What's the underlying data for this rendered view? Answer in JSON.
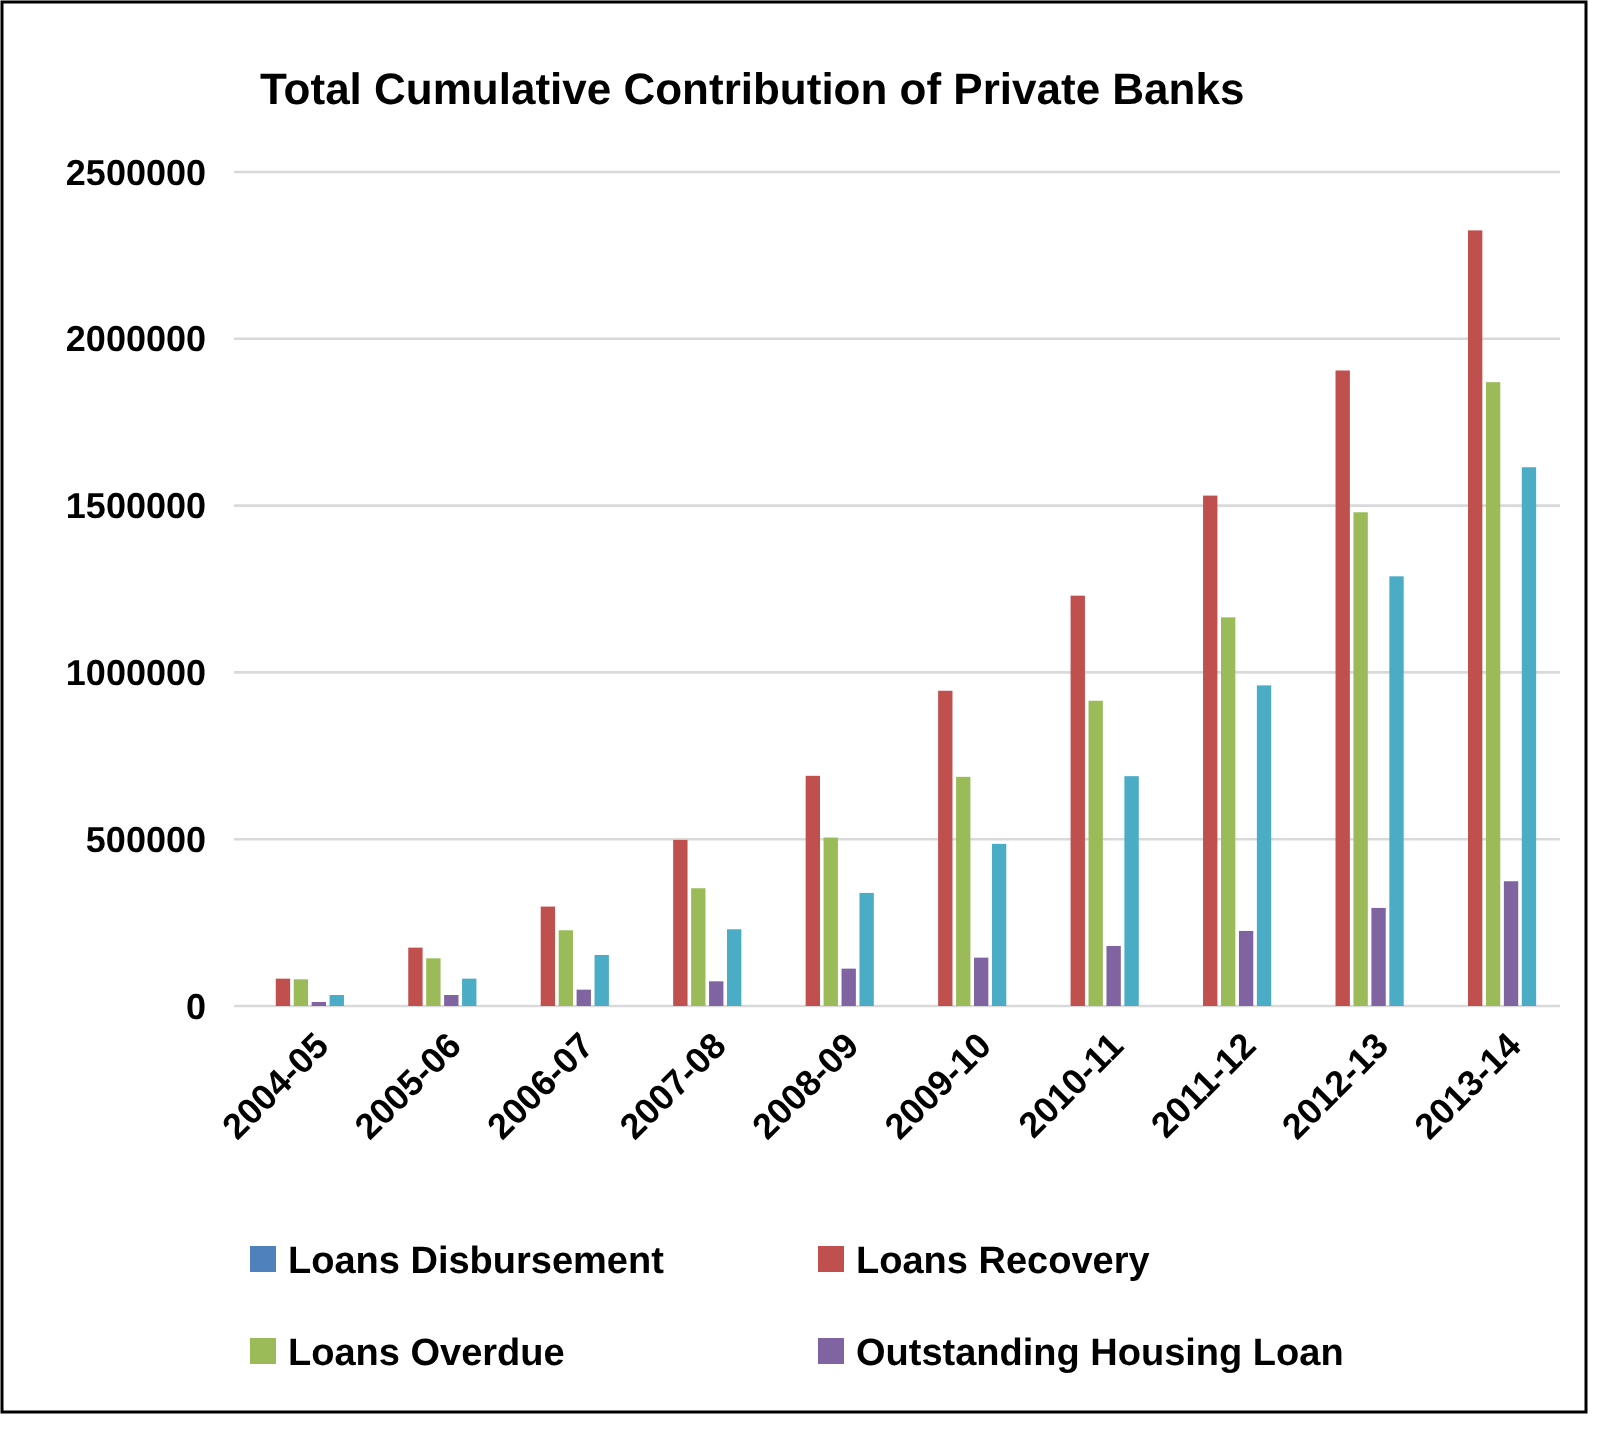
{
  "chart_data": {
    "type": "bar",
    "title": "Total Cumulative Contribution of Private Banks",
    "categories": [
      "2004-05",
      "2005-06",
      "2006-07",
      "2007-08",
      "2008-09",
      "2009-10",
      "2010-11",
      "2011-12",
      "2012-13",
      "2013-14"
    ],
    "series": [
      {
        "name": "Loans Disbursement",
        "color": "#4f81bd",
        "values": [
          null,
          null,
          null,
          null,
          null,
          null,
          null,
          null,
          null,
          null
        ]
      },
      {
        "name": "Loans Recovery",
        "color": "#c0504d",
        "values": [
          82000,
          175000,
          298000,
          498000,
          690000,
          945000,
          1230000,
          1530000,
          1905000,
          2325000
        ]
      },
      {
        "name": "Loans Overdue",
        "color": "#9bbb59",
        "values": [
          80000,
          143000,
          227000,
          353000,
          505000,
          687000,
          915000,
          1165000,
          1480000,
          1870000
        ]
      },
      {
        "name": "Outstanding Housing Loan",
        "color": "#8064a2",
        "values": [
          12000,
          33000,
          49000,
          74000,
          112000,
          145000,
          180000,
          225000,
          294000,
          374000
        ]
      },
      {
        "color": "#4bacc6",
        "values": [
          33000,
          82000,
          153000,
          230000,
          339000,
          486000,
          689000,
          961000,
          1288000,
          1615000
        ]
      }
    ],
    "ylim": [
      0,
      2500000
    ],
    "yticks": [
      0,
      500000,
      1000000,
      1500000,
      2000000,
      2500000
    ],
    "grid": "y",
    "legend": "bottom"
  }
}
